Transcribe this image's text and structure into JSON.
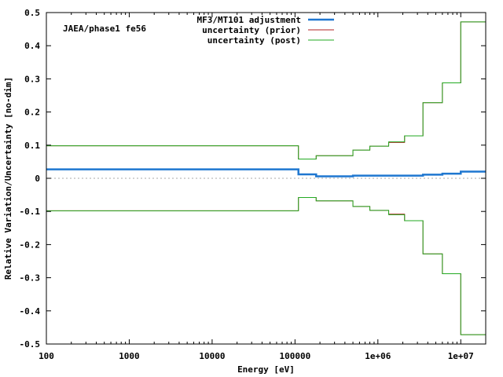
{
  "chart_data": {
    "type": "line",
    "xscale": "log",
    "xlabel": "Energy [eV]",
    "ylabel": "Relative Variation/Uncertainty [no-dim]",
    "xlim": [
      100,
      20000000
    ],
    "ylim": [
      -0.5,
      0.5
    ],
    "x_tick_values": [
      100,
      1000,
      10000,
      100000,
      1000000,
      10000000
    ],
    "x_tick_labels": [
      "100",
      "1000",
      "10000",
      "100000",
      "1e+06",
      "1e+07"
    ],
    "y_tick_values": [
      0.5,
      0.4,
      0.3,
      0.2,
      0.1,
      0,
      -0.1,
      -0.2,
      -0.3,
      -0.4,
      -0.5
    ],
    "y_tick_labels": [
      "0.5",
      "0.4",
      "0.3",
      "0.2",
      "0.1",
      "0",
      "-0.1",
      "-0.2",
      "-0.3",
      "-0.4",
      "-0.5"
    ],
    "zero_line": true,
    "legend_position": "top-right",
    "annotation": "JAEA/phase1 fe56",
    "bin_edges": [
      100,
      110000,
      180000,
      500000,
      800000,
      1350000,
      2100000,
      3500000,
      6000000,
      10000000,
      20000000
    ],
    "series": [
      {
        "name": "MF3/MT101 adjustment",
        "color": "#1f77d0",
        "step": true,
        "values": [
          0.027,
          0.012,
          0.006,
          0.008,
          0.008,
          0.008,
          0.008,
          0.011,
          0.014,
          0.02
        ]
      },
      {
        "name": "uncertainty (prior)",
        "color": "#b22222",
        "step": true,
        "symmetric": true,
        "values": [
          0.098,
          0.058,
          0.068,
          0.085,
          0.097,
          0.108,
          0.128,
          0.228,
          0.288,
          0.472
        ]
      },
      {
        "name": "uncertainty (post)",
        "color": "#22aa22",
        "step": true,
        "symmetric": true,
        "values": [
          0.098,
          0.058,
          0.068,
          0.085,
          0.097,
          0.11,
          0.128,
          0.228,
          0.288,
          0.472
        ]
      }
    ]
  }
}
